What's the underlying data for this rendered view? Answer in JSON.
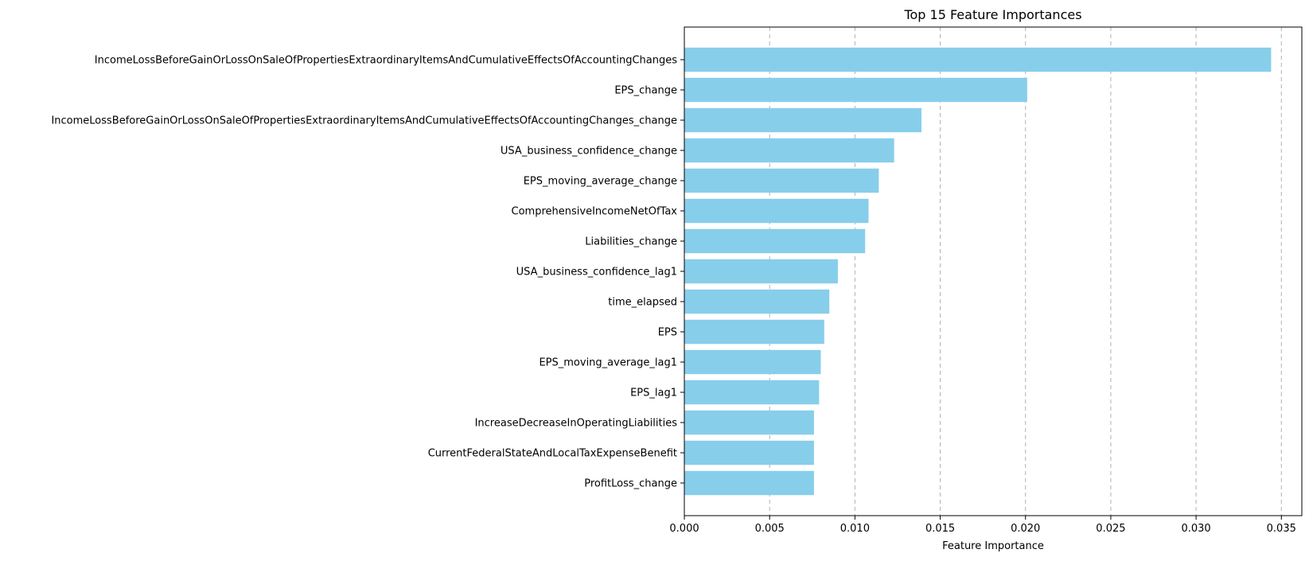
{
  "chart_data": {
    "type": "bar",
    "orientation": "horizontal",
    "title": "Top 15 Feature Importances",
    "xlabel": "Feature Importance",
    "ylabel": "",
    "xlim": [
      0,
      0.0362
    ],
    "x_ticks": [
      0.0,
      0.005,
      0.01,
      0.015,
      0.02,
      0.025,
      0.03,
      0.035
    ],
    "x_tick_labels": [
      "0.000",
      "0.005",
      "0.010",
      "0.015",
      "0.020",
      "0.025",
      "0.030",
      "0.035"
    ],
    "grid": "x-axis, dashed",
    "legend": "none",
    "bar_color": "#87CEEB",
    "categories": [
      "IncomeLossBeforeGainOrLossOnSaleOfPropertiesExtraordinaryItemsAndCumulativeEffectsOfAccountingChanges",
      "EPS_change",
      "IncomeLossBeforeGainOrLossOnSaleOfPropertiesExtraordinaryItemsAndCumulativeEffectsOfAccountingChanges_change",
      "USA_business_confidence_change",
      "EPS_moving_average_change",
      "ComprehensiveIncomeNetOfTax",
      "Liabilities_change",
      "USA_business_confidence_lag1",
      "time_elapsed",
      "EPS",
      "EPS_moving_average_lag1",
      "EPS_lag1",
      "IncreaseDecreaseInOperatingLiabilities",
      "CurrentFederalStateAndLocalTaxExpenseBenefit",
      "ProfitLoss_change"
    ],
    "values": [
      0.0344,
      0.0201,
      0.0139,
      0.0123,
      0.0114,
      0.0108,
      0.0106,
      0.009,
      0.0085,
      0.0082,
      0.008,
      0.0079,
      0.0076,
      0.0076,
      0.0076
    ]
  }
}
